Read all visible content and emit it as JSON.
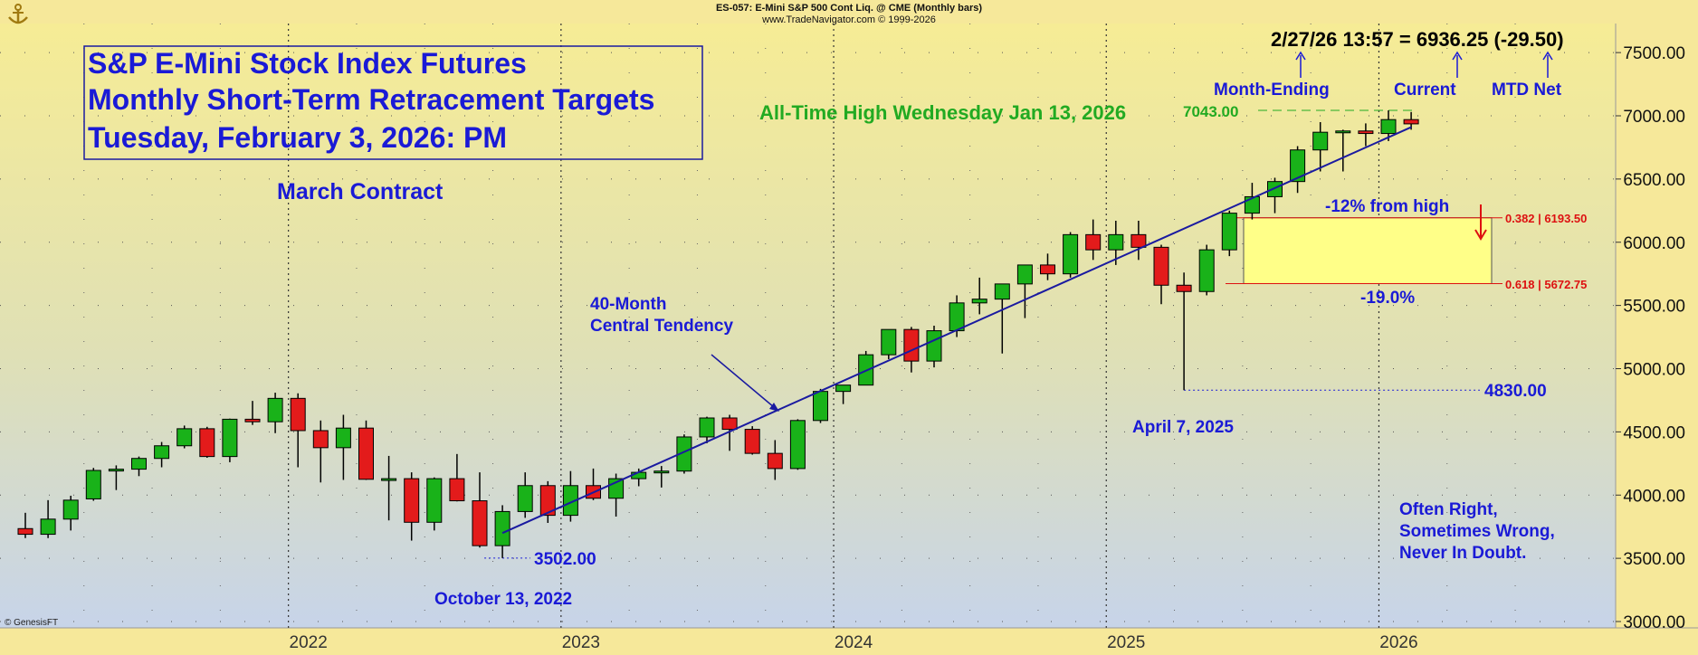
{
  "header": {
    "symbol_line": "ES-057:  E-Mini S&P 500 Cont Liq. @ CME  (Monthly bars)",
    "source_line": "www.TradeNavigator.com © 1999-2026"
  },
  "title_box": {
    "line1": "S&P E-Mini Stock Index Futures",
    "line2": "Monthly Short-Term Retracement Targets",
    "line3": "Tuesday, February 3, 2026: PM"
  },
  "annotations": {
    "contract": "March Contract",
    "ath": "All-Time High Wednesday Jan 13, 2026",
    "ath_value": "7043.00",
    "quote": "2/27/26 13:57 = 6936.25 (-29.50)",
    "month_ending": "Month-Ending",
    "current": "Current",
    "mtd_net": "MTD Net",
    "pct_high": "-12% from high",
    "pct_low": "-19.0%",
    "fib1": "0.382 | 6193.50",
    "fib2": "0.618 | 5672.75",
    "low_2025": "4830.00",
    "low_2025_date": "April 7, 2025",
    "low_2022": "3502.00",
    "low_2022_date": "October 13, 2022",
    "tendency_1": "40-Month",
    "tendency_2": "Central Tendency",
    "motto_1": "Often Right,",
    "motto_2": "Sometimes Wrong,",
    "motto_3": "Never In Doubt.",
    "copyright": "© GenesisFT"
  },
  "colors": {
    "up": "#19b219",
    "down": "#e31b1b",
    "text_blue": "#1a1ad6",
    "ath_green": "#22aa22",
    "fib_red": "#dd1111",
    "zone_fill": "#ffff88"
  },
  "chart_data": {
    "type": "candlestick",
    "title": "ES-057:  E-Mini S&P 500 Cont Liq. @ CME  (Monthly bars)",
    "x_axis_labels": [
      "2022",
      "2023",
      "2024",
      "2025",
      "2026"
    ],
    "y_ticks": [
      "3000.00",
      "3500.00",
      "4000.00",
      "4500.00",
      "5000.00",
      "5500.00",
      "6000.00",
      "6500.00",
      "7000.00",
      "7500.00"
    ],
    "ylim": [
      2930,
      7720
    ],
    "grid": "dotted",
    "start_month": "2021-01",
    "bars": [
      [
        3735,
        3860,
        3660,
        3690
      ],
      [
        3690,
        3960,
        3660,
        3810
      ],
      [
        3810,
        3995,
        3720,
        3960
      ],
      [
        3970,
        4215,
        3955,
        4195
      ],
      [
        4195,
        4235,
        4040,
        4205
      ],
      [
        4205,
        4305,
        4150,
        4290
      ],
      [
        4290,
        4420,
        4220,
        4390
      ],
      [
        4390,
        4550,
        4370,
        4525
      ],
      [
        4525,
        4540,
        4295,
        4305
      ],
      [
        4305,
        4605,
        4260,
        4600
      ],
      [
        4600,
        4745,
        4555,
        4580
      ],
      [
        4580,
        4810,
        4490,
        4765
      ],
      [
        4765,
        4805,
        4220,
        4510
      ],
      [
        4510,
        4590,
        4100,
        4375
      ],
      [
        4375,
        4635,
        4120,
        4530
      ],
      [
        4530,
        4590,
        4120,
        4125
      ],
      [
        4130,
        4310,
        3800,
        4130
      ],
      [
        4130,
        4180,
        3640,
        3785
      ],
      [
        3785,
        4140,
        3720,
        4130
      ],
      [
        4130,
        4325,
        3950,
        3955
      ],
      [
        3955,
        4180,
        3585,
        3600
      ],
      [
        3600,
        3920,
        3502,
        3870
      ],
      [
        3870,
        4180,
        3820,
        4075
      ],
      [
        4075,
        4110,
        3780,
        3840
      ],
      [
        3840,
        4190,
        3790,
        4075
      ],
      [
        4075,
        4210,
        3960,
        3975
      ],
      [
        3975,
        4170,
        3830,
        4130
      ],
      [
        4130,
        4210,
        4070,
        4180
      ],
      [
        4180,
        4230,
        4060,
        4190
      ],
      [
        4190,
        4480,
        4170,
        4460
      ],
      [
        4460,
        4620,
        4410,
        4610
      ],
      [
        4610,
        4635,
        4350,
        4520
      ],
      [
        4520,
        4545,
        4320,
        4330
      ],
      [
        4330,
        4435,
        4120,
        4210
      ],
      [
        4210,
        4600,
        4200,
        4590
      ],
      [
        4590,
        4840,
        4570,
        4820
      ],
      [
        4820,
        4860,
        4720,
        4870
      ],
      [
        4870,
        5140,
        4870,
        5110
      ],
      [
        5110,
        5310,
        5075,
        5310
      ],
      [
        5310,
        5330,
        4970,
        5060
      ],
      [
        5060,
        5340,
        5010,
        5300
      ],
      [
        5300,
        5580,
        5250,
        5520
      ],
      [
        5520,
        5720,
        5430,
        5550
      ],
      [
        5550,
        5670,
        5120,
        5670
      ],
      [
        5670,
        5820,
        5400,
        5820
      ],
      [
        5820,
        5910,
        5700,
        5750
      ],
      [
        5750,
        6080,
        5720,
        6060
      ],
      [
        6060,
        6180,
        5860,
        5940
      ],
      [
        5940,
        6170,
        5820,
        6060
      ],
      [
        6060,
        6170,
        5860,
        5960
      ],
      [
        5960,
        5980,
        5510,
        5660
      ],
      [
        5660,
        5760,
        4830,
        5610
      ],
      [
        5610,
        5980,
        5580,
        5940
      ],
      [
        5940,
        6250,
        5890,
        6230
      ],
      [
        6230,
        6470,
        6180,
        6360
      ],
      [
        6360,
        6510,
        6230,
        6480
      ],
      [
        6480,
        6760,
        6390,
        6730
      ],
      [
        6730,
        6950,
        6560,
        6870
      ],
      [
        6870,
        6890,
        6560,
        6880
      ],
      [
        6880,
        6940,
        6760,
        6860
      ],
      [
        6860,
        7043,
        6800,
        6970
      ],
      [
        6970,
        7030,
        6890,
        6936.25
      ]
    ],
    "fib_levels": [
      {
        "ratio": 0.382,
        "price": 6193.5
      },
      {
        "ratio": 0.618,
        "price": 5672.75
      }
    ],
    "all_time_high": 7043.0,
    "lows": [
      {
        "price": 3502.0,
        "date": "October 13, 2022"
      },
      {
        "price": 4830.0,
        "date": "April 7, 2025"
      }
    ],
    "central_tendency": {
      "from": [
        "2022-10",
        3700
      ],
      "to": [
        "2026-02",
        6910
      ]
    },
    "current": {
      "date": "2/27/26 13:57",
      "price": 6936.25,
      "change": -29.5
    }
  }
}
